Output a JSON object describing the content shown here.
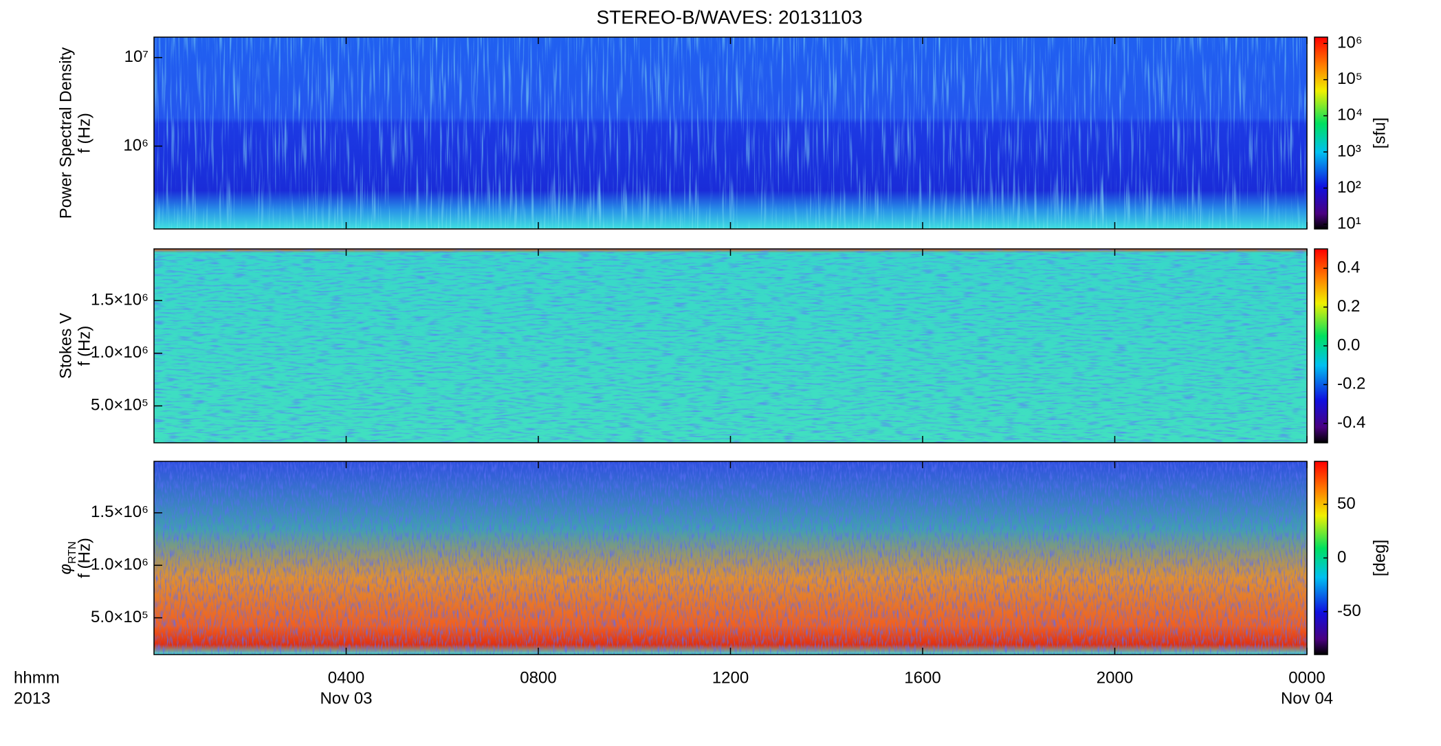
{
  "chart_data": [
    {
      "type": "spectrogram",
      "title": "STEREO-B/WAVES: 20131103",
      "ylabel": "Power Spectral Density",
      "ylabel2": "f (Hz)",
      "ylog": true,
      "ylim": [
        116000,
        17000000
      ],
      "yticks": [
        {
          "value": 1000000,
          "label": "10⁶"
        },
        {
          "value": 10000000,
          "label": "10⁷"
        }
      ],
      "colormap": "rainbow",
      "colorbar": {
        "label": "[sfu]",
        "log": true,
        "lim": [
          7.4,
          1500000
        ],
        "ticks": [
          {
            "value": 10,
            "label": "10¹"
          },
          {
            "value": 100,
            "label": "10²"
          },
          {
            "value": 1000,
            "label": "10³"
          },
          {
            "value": 10000,
            "label": "10⁴"
          },
          {
            "value": 100000,
            "label": "10⁵"
          },
          {
            "value": 1000000,
            "label": "10⁶"
          }
        ]
      }
    },
    {
      "type": "spectrogram",
      "ylabel": "Stokes V",
      "ylabel2": "f (Hz)",
      "ylog": false,
      "ylim": [
        150000,
        1990000
      ],
      "yticks": [
        {
          "value": 500000,
          "label": "5.0×10⁵"
        },
        {
          "value": 1000000,
          "label": "1.0×10⁶"
        },
        {
          "value": 1500000,
          "label": "1.5×10⁶"
        }
      ],
      "colormap": "rainbow",
      "colorbar": {
        "log": false,
        "lim": [
          -0.5,
          0.5
        ],
        "ticks": [
          -0.4,
          -0.2,
          {
            "value": 0,
            "label": "0.0"
          },
          0.2,
          0.4
        ]
      }
    },
    {
      "type": "spectrogram",
      "ylabel": "φ",
      "ylabel_sub": "RTN",
      "ylabel2": "f (Hz)",
      "ylog": false,
      "ylim": [
        150000,
        1990000
      ],
      "yticks": [
        {
          "value": 500000,
          "label": "5.0×10⁵"
        },
        {
          "value": 1000000,
          "label": "1.0×10⁶"
        },
        {
          "value": 1500000,
          "label": "1.5×10⁶"
        }
      ],
      "colormap": "rainbow",
      "colorbar": {
        "label": "[deg]",
        "log": false,
        "lim": [
          -90,
          90
        ],
        "ticks": [
          -50,
          0,
          50
        ]
      },
      "xlim": [
        0,
        24
      ],
      "xticks": [
        {
          "value": 4,
          "label": "0400"
        },
        {
          "value": 8,
          "label": "0800"
        },
        {
          "value": 12,
          "label": "1200"
        },
        {
          "value": 16,
          "label": "1600"
        },
        {
          "value": 20,
          "label": "2000"
        },
        {
          "value": 24,
          "label": "0000"
        }
      ],
      "xdates": [
        {
          "value": 4,
          "label": "Nov 03"
        },
        {
          "value": 24,
          "label": "Nov 04"
        }
      ],
      "xlabel": "hhmm",
      "xlabel2": "2013"
    }
  ]
}
